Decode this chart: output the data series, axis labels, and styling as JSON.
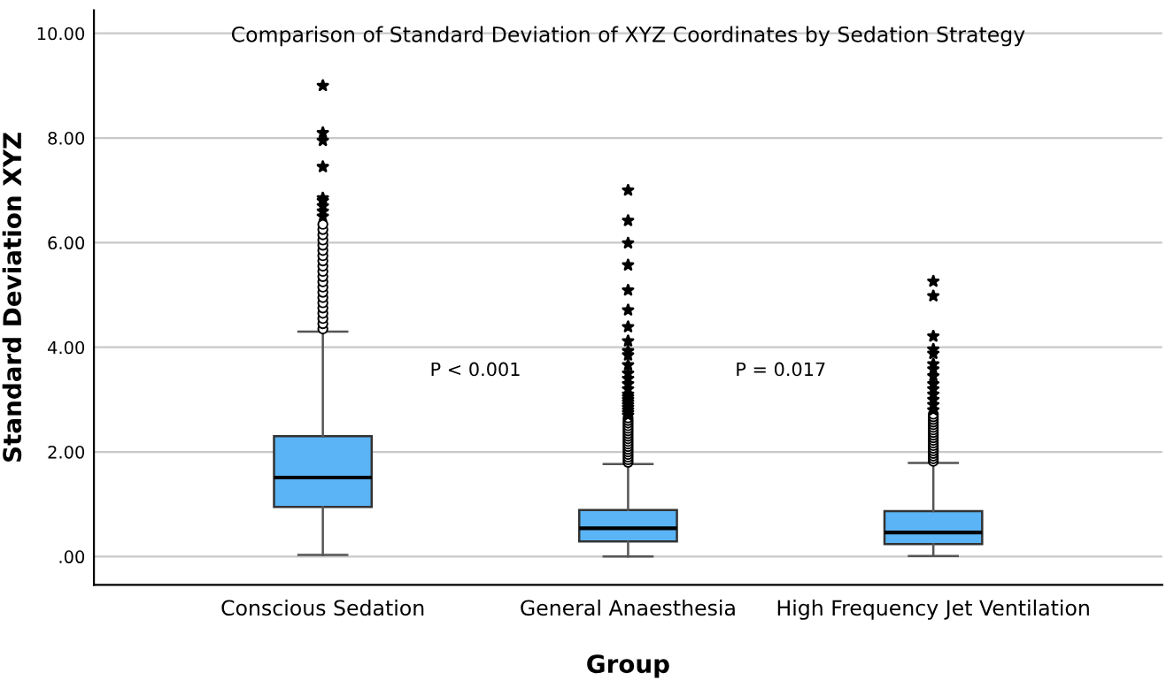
{
  "chart_data": {
    "type": "box",
    "title": "Comparison of Standard Deviation of XYZ Coordinates by Sedation Strategy",
    "xlabel": "Group",
    "ylabel": "Standard Deviation XYZ",
    "categories": [
      "Conscious Sedation",
      "General Anaesthesia",
      "High Frequency Jet Ventilation"
    ],
    "boxes": [
      {
        "low": 0.03,
        "q1": 0.95,
        "median": 1.51,
        "q3": 2.3,
        "high": 4.3,
        "outliers": [
          4.35,
          4.45,
          4.55,
          4.65,
          4.75,
          4.85,
          4.95,
          5.05,
          5.15,
          5.25,
          5.35,
          5.45,
          5.55,
          5.65,
          5.75,
          5.85,
          5.95,
          6.05,
          6.15,
          6.25,
          6.35,
          6.5,
          6.6,
          6.7,
          6.8,
          6.85,
          7.45,
          7.95,
          8.1,
          9.0
        ]
      },
      {
        "low": 0.0,
        "q1": 0.29,
        "median": 0.54,
        "q3": 0.89,
        "high": 1.77,
        "outliers": [
          1.8,
          1.85,
          1.9,
          1.95,
          2.0,
          2.05,
          2.1,
          2.15,
          2.2,
          2.25,
          2.3,
          2.35,
          2.4,
          2.45,
          2.5,
          2.55,
          2.6,
          2.65,
          2.7,
          2.75,
          2.8,
          2.85,
          2.9,
          2.95,
          3.0,
          3.05,
          3.1,
          3.2,
          3.3,
          3.4,
          3.5,
          3.66,
          3.85,
          3.93,
          4.12,
          4.39,
          4.71,
          5.09,
          5.57,
          5.99,
          6.42,
          7.0
        ]
      },
      {
        "low": 0.01,
        "q1": 0.24,
        "median": 0.46,
        "q3": 0.87,
        "high": 1.79,
        "outliers": [
          1.82,
          1.87,
          1.92,
          1.97,
          2.02,
          2.07,
          2.12,
          2.17,
          2.22,
          2.27,
          2.32,
          2.37,
          2.42,
          2.47,
          2.52,
          2.57,
          2.62,
          2.67,
          2.72,
          2.8,
          2.9,
          3.0,
          3.1,
          3.2,
          3.3,
          3.45,
          3.58,
          3.68,
          3.88,
          3.96,
          4.21,
          4.98,
          5.26
        ]
      }
    ],
    "color": "#5ab4f5",
    "ylim": [
      -0.54,
      10.44
    ],
    "yticks": [
      {
        "value": 0,
        "label": ".00"
      },
      {
        "value": 2,
        "label": "2.00"
      },
      {
        "value": 4,
        "label": "4.00"
      },
      {
        "value": 6,
        "label": "6.00"
      },
      {
        "value": 8,
        "label": "8.00"
      },
      {
        "value": 10,
        "label": "10.00"
      }
    ],
    "grid": "y",
    "annotations": [
      "P < 0.001",
      "P = 0.017"
    ]
  }
}
